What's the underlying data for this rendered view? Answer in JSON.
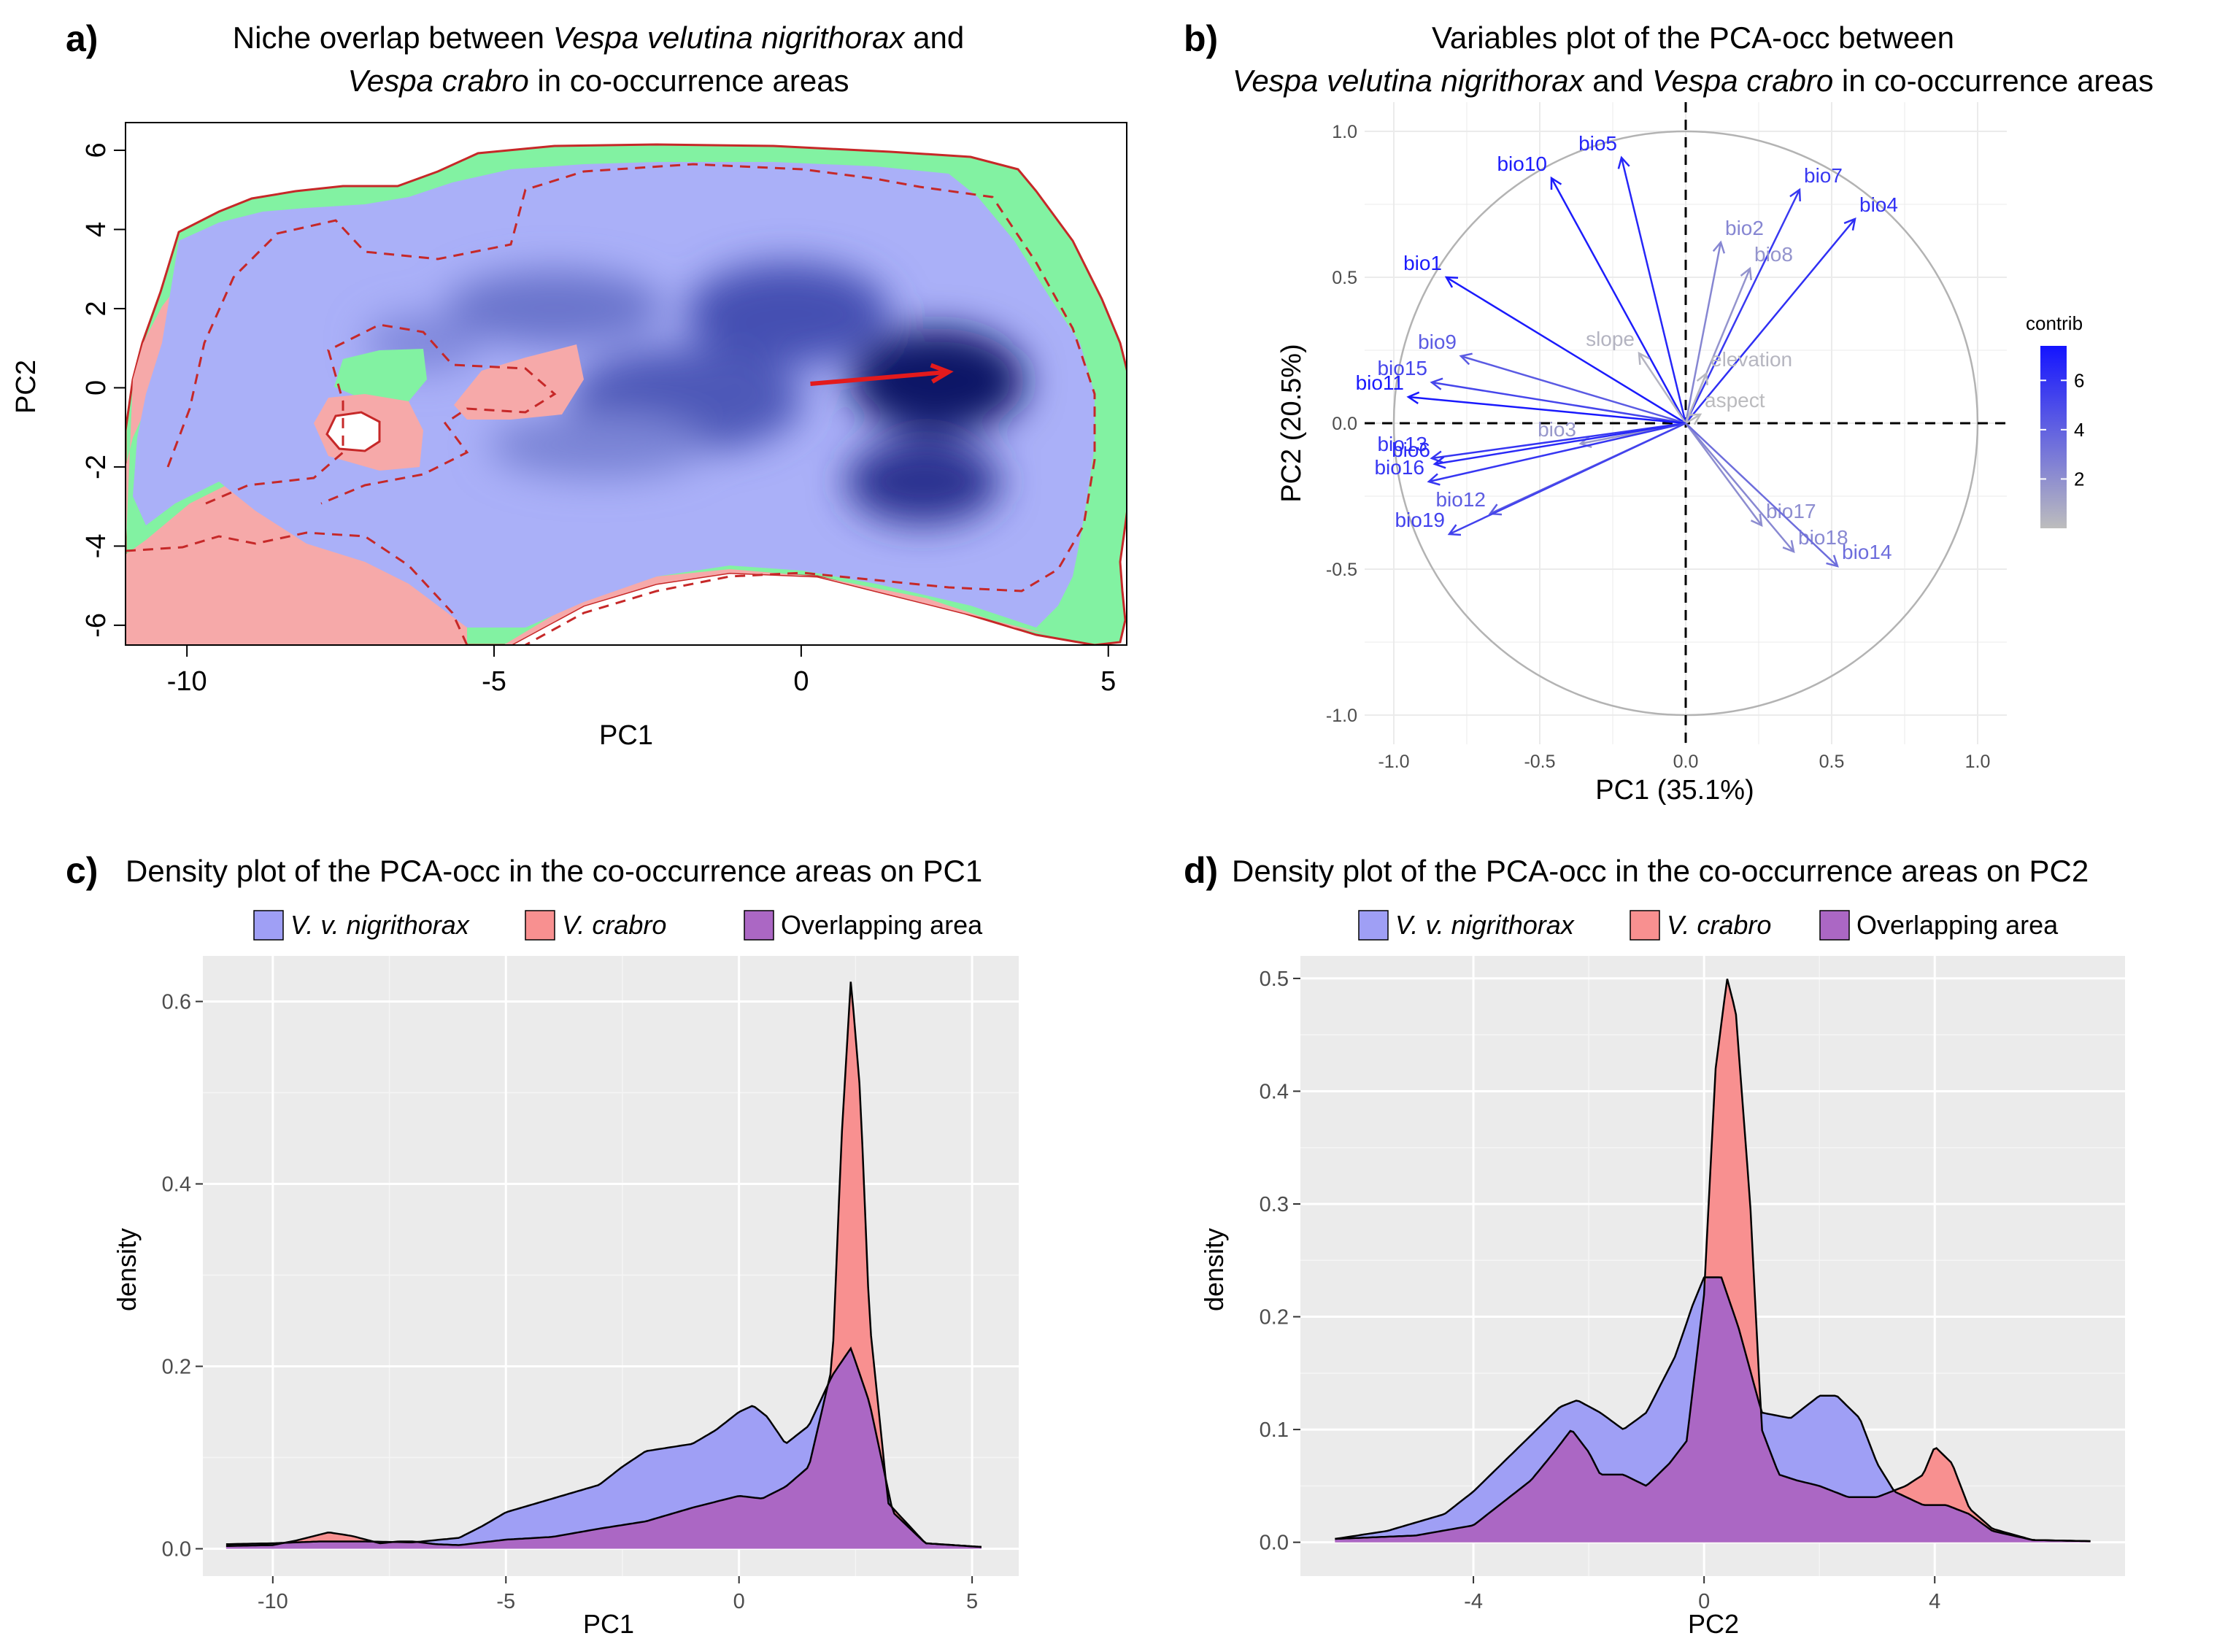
{
  "panels": {
    "a": {
      "label": "a)",
      "title_pre": "Niche overlap between ",
      "title_sp1": "Vespa velutina nigrithorax",
      "title_mid": " and",
      "title_sp2": "Vespa crabro",
      "title_post": " in co-occurrence areas"
    },
    "b": {
      "label": "b)",
      "title_line1": "Variables plot of the PCA-occ between",
      "title_sp1": "Vespa velutina nigrithorax",
      "title_mid": " and ",
      "title_sp2": "Vespa crabro",
      "title_post": " in co-occurrence areas"
    },
    "c": {
      "label": "c)",
      "title": "Density plot of the PCA-occ in the co-occurrence areas on PC1"
    },
    "d": {
      "label": "d)",
      "title": "Density plot of the PCA-occ in the co-occurrence areas on PC2"
    }
  },
  "legend": {
    "nigrithorax": "V. v. nigrithorax",
    "crabro": "V. crabro",
    "overlap": "Overlapping area"
  },
  "colors": {
    "nigrithorax": "#9f9ff5",
    "crabro": "#f89090",
    "overlap": "#ab67c4",
    "niche_green": "#82f2a2",
    "niche_pink": "#f6a9a9",
    "niche_blue_light": "#aab0f8",
    "niche_blue_dark": "#111a70",
    "arrow_red": "#e31a1c",
    "contour": "#c0392b",
    "contrib_high": "#1414ff",
    "contrib_low": "#bdbdbd"
  },
  "chart_data": [
    {
      "id": "a",
      "type": "heatmap",
      "title": "Niche overlap between Vespa velutina nigrithorax and Vespa crabro in co-occurrence areas",
      "xlabel": "PC1",
      "ylabel": "PC2",
      "xlim": [
        -11,
        5.3
      ],
      "ylim": [
        -6.5,
        6.7
      ],
      "xticks": [
        -10,
        -5,
        0,
        5
      ],
      "yticks": [
        -6,
        -4,
        -2,
        0,
        2,
        4,
        6
      ],
      "centroid_shift_arrow": {
        "from": [
          0.15,
          0.1
        ],
        "to": [
          2.4,
          0.4
        ]
      },
      "density_peaks": [
        {
          "pc1": 2.5,
          "pc2": 0.2
        },
        {
          "pc1": 2.4,
          "pc2": -2.2
        },
        {
          "pc1": 0.2,
          "pc2": 1.3
        },
        {
          "pc1": -1.5,
          "pc2": -0.5
        },
        {
          "pc1": -5.5,
          "pc2": 2.2
        }
      ]
    },
    {
      "id": "b",
      "type": "scatter",
      "title": "Variables plot of the PCA-occ between Vespa velutina nigrithorax and Vespa crabro in co-occurrence areas",
      "xlabel": "PC1 (35.1%)",
      "ylabel": "PC2 (20.5%)",
      "xlim": [
        -1.1,
        1.1
      ],
      "ylim": [
        -1.1,
        1.1
      ],
      "xticks": [
        -1.0,
        -0.5,
        0.0,
        0.5,
        1.0
      ],
      "yticks": [
        -1.0,
        -0.5,
        0.0,
        0.5,
        1.0
      ],
      "tick_labels": [
        "-1.0",
        "-0.5",
        "0.0",
        "0.5",
        "1.0"
      ],
      "legend_title": "contrib",
      "legend_ticks": [
        "2",
        "4",
        "6"
      ],
      "vectors": [
        {
          "name": "bio10",
          "x": -0.46,
          "y": 0.84,
          "contrib": 7.0
        },
        {
          "name": "bio5",
          "x": -0.22,
          "y": 0.91,
          "contrib": 6.6
        },
        {
          "name": "bio7",
          "x": 0.39,
          "y": 0.8,
          "contrib": 5.8
        },
        {
          "name": "bio4",
          "x": 0.58,
          "y": 0.7,
          "contrib": 6.2
        },
        {
          "name": "bio2",
          "x": 0.12,
          "y": 0.62,
          "contrib": 2.4
        },
        {
          "name": "bio8",
          "x": 0.22,
          "y": 0.53,
          "contrib": 1.8
        },
        {
          "name": "bio1",
          "x": -0.82,
          "y": 0.5,
          "contrib": 7.1
        },
        {
          "name": "slope",
          "x": -0.16,
          "y": 0.24,
          "contrib": 0.4
        },
        {
          "name": "elevation",
          "x": 0.07,
          "y": 0.17,
          "contrib": 0.3
        },
        {
          "name": "bio9",
          "x": -0.77,
          "y": 0.23,
          "contrib": 4.3
        },
        {
          "name": "bio15",
          "x": -0.87,
          "y": 0.14,
          "contrib": 5.2
        },
        {
          "name": "bio11",
          "x": -0.95,
          "y": 0.09,
          "contrib": 7.2
        },
        {
          "name": "aspect",
          "x": 0.05,
          "y": 0.03,
          "contrib": 0.1
        },
        {
          "name": "bio3",
          "x": -0.36,
          "y": -0.07,
          "contrib": 1.6
        },
        {
          "name": "bio13",
          "x": -0.87,
          "y": -0.12,
          "contrib": 5.9
        },
        {
          "name": "bio6",
          "x": -0.86,
          "y": -0.14,
          "contrib": 6.5
        },
        {
          "name": "bio16",
          "x": -0.88,
          "y": -0.2,
          "contrib": 5.9
        },
        {
          "name": "bio12",
          "x": -0.67,
          "y": -0.31,
          "contrib": 4.2
        },
        {
          "name": "bio19",
          "x": -0.81,
          "y": -0.38,
          "contrib": 5.4
        },
        {
          "name": "bio17",
          "x": 0.26,
          "y": -0.35,
          "contrib": 2.1
        },
        {
          "name": "bio18",
          "x": 0.37,
          "y": -0.44,
          "contrib": 2.3
        },
        {
          "name": "bio14",
          "x": 0.52,
          "y": -0.49,
          "contrib": 3.5
        }
      ]
    },
    {
      "id": "c",
      "type": "area",
      "title": "Density plot of the PCA-occ in the co-occurrence areas on PC1",
      "xlabel": "PC1",
      "ylabel": "density",
      "xlim": [
        -11.5,
        6.0
      ],
      "ylim": [
        -0.03,
        0.65
      ],
      "xticks": [
        -10,
        -5,
        0,
        5
      ],
      "yticks": [
        0.0,
        0.2,
        0.4,
        0.6
      ],
      "xtick_labels": [
        "-10",
        "-5",
        "0",
        "5"
      ],
      "ytick_labels": [
        "0.0",
        "0.2",
        "0.4",
        "0.6"
      ],
      "series": [
        {
          "name": "V. v. nigrithorax",
          "x": [
            -11,
            -10,
            -9,
            -8,
            -7,
            -6,
            -5.5,
            -5,
            -4,
            -3,
            -2.5,
            -2,
            -1,
            -0.5,
            0,
            0.3,
            0.6,
            1,
            1.5,
            2,
            2.4,
            2.8,
            3.3,
            4,
            5.2
          ],
          "y": [
            0.005,
            0.006,
            0.008,
            0.008,
            0.007,
            0.012,
            0.025,
            0.04,
            0.055,
            0.07,
            0.09,
            0.107,
            0.115,
            0.13,
            0.15,
            0.157,
            0.145,
            0.115,
            0.135,
            0.19,
            0.22,
            0.16,
            0.04,
            0.006,
            0.002
          ]
        },
        {
          "name": "V. crabro",
          "x": [
            -11,
            -10,
            -9.5,
            -8.8,
            -8.3,
            -7.7,
            -7.3,
            -7,
            -6.5,
            -6,
            -5,
            -4,
            -3,
            -2,
            -1,
            0,
            0.5,
            1,
            1.5,
            2,
            2.2,
            2.4,
            2.6,
            2.8,
            3.2,
            4,
            5.2
          ],
          "y": [
            0.003,
            0.004,
            0.009,
            0.018,
            0.014,
            0.006,
            0.008,
            0.008,
            0.005,
            0.004,
            0.01,
            0.013,
            0.022,
            0.03,
            0.045,
            0.058,
            0.055,
            0.068,
            0.09,
            0.2,
            0.45,
            0.625,
            0.5,
            0.25,
            0.05,
            0.006,
            0.002
          ]
        },
        {
          "name": "Overlapping area"
        }
      ]
    },
    {
      "id": "d",
      "type": "area",
      "title": "Density plot of the PCA-occ in the co-occurrence areas on PC2",
      "xlabel": "PC2",
      "ylabel": "density",
      "xlim": [
        -7.0,
        7.3
      ],
      "ylim": [
        -0.03,
        0.52
      ],
      "xticks": [
        -4,
        0,
        4
      ],
      "yticks": [
        0.0,
        0.1,
        0.2,
        0.3,
        0.4,
        0.5
      ],
      "xtick_labels": [
        "-4",
        "0",
        "4"
      ],
      "ytick_labels": [
        "0.0",
        "0.1",
        "0.2",
        "0.3",
        "0.4",
        "0.5"
      ],
      "series": [
        {
          "name": "V. v. nigrithorax",
          "x": [
            -6.4,
            -5.5,
            -4.5,
            -4,
            -3.5,
            -3,
            -2.5,
            -2.2,
            -1.8,
            -1.4,
            -1,
            -0.5,
            -0.2,
            0,
            0.3,
            0.6,
            1,
            1.5,
            2,
            2.3,
            2.7,
            3,
            3.3,
            3.8,
            4.2,
            4.6,
            5,
            5.7,
            6.7
          ],
          "y": [
            0.003,
            0.01,
            0.025,
            0.045,
            0.07,
            0.095,
            0.12,
            0.126,
            0.115,
            0.1,
            0.115,
            0.165,
            0.21,
            0.235,
            0.235,
            0.19,
            0.115,
            0.11,
            0.13,
            0.13,
            0.11,
            0.07,
            0.045,
            0.033,
            0.033,
            0.025,
            0.01,
            0.002,
            0.001
          ]
        },
        {
          "name": "V. crabro",
          "x": [
            -6.4,
            -5,
            -4,
            -3.5,
            -3,
            -2.6,
            -2.3,
            -2,
            -1.8,
            -1.4,
            -1,
            -0.6,
            -0.3,
            0,
            0.2,
            0.4,
            0.55,
            0.8,
            1,
            1.3,
            1.6,
            2,
            2.5,
            3,
            3.5,
            3.8,
            4,
            4.3,
            4.6,
            5,
            5.7,
            6.7
          ],
          "y": [
            0.003,
            0.006,
            0.015,
            0.035,
            0.055,
            0.08,
            0.1,
            0.08,
            0.06,
            0.06,
            0.05,
            0.07,
            0.09,
            0.22,
            0.42,
            0.5,
            0.47,
            0.3,
            0.1,
            0.06,
            0.055,
            0.05,
            0.04,
            0.04,
            0.05,
            0.06,
            0.085,
            0.07,
            0.03,
            0.012,
            0.002,
            0.001
          ]
        },
        {
          "name": "Overlapping area"
        }
      ]
    }
  ]
}
